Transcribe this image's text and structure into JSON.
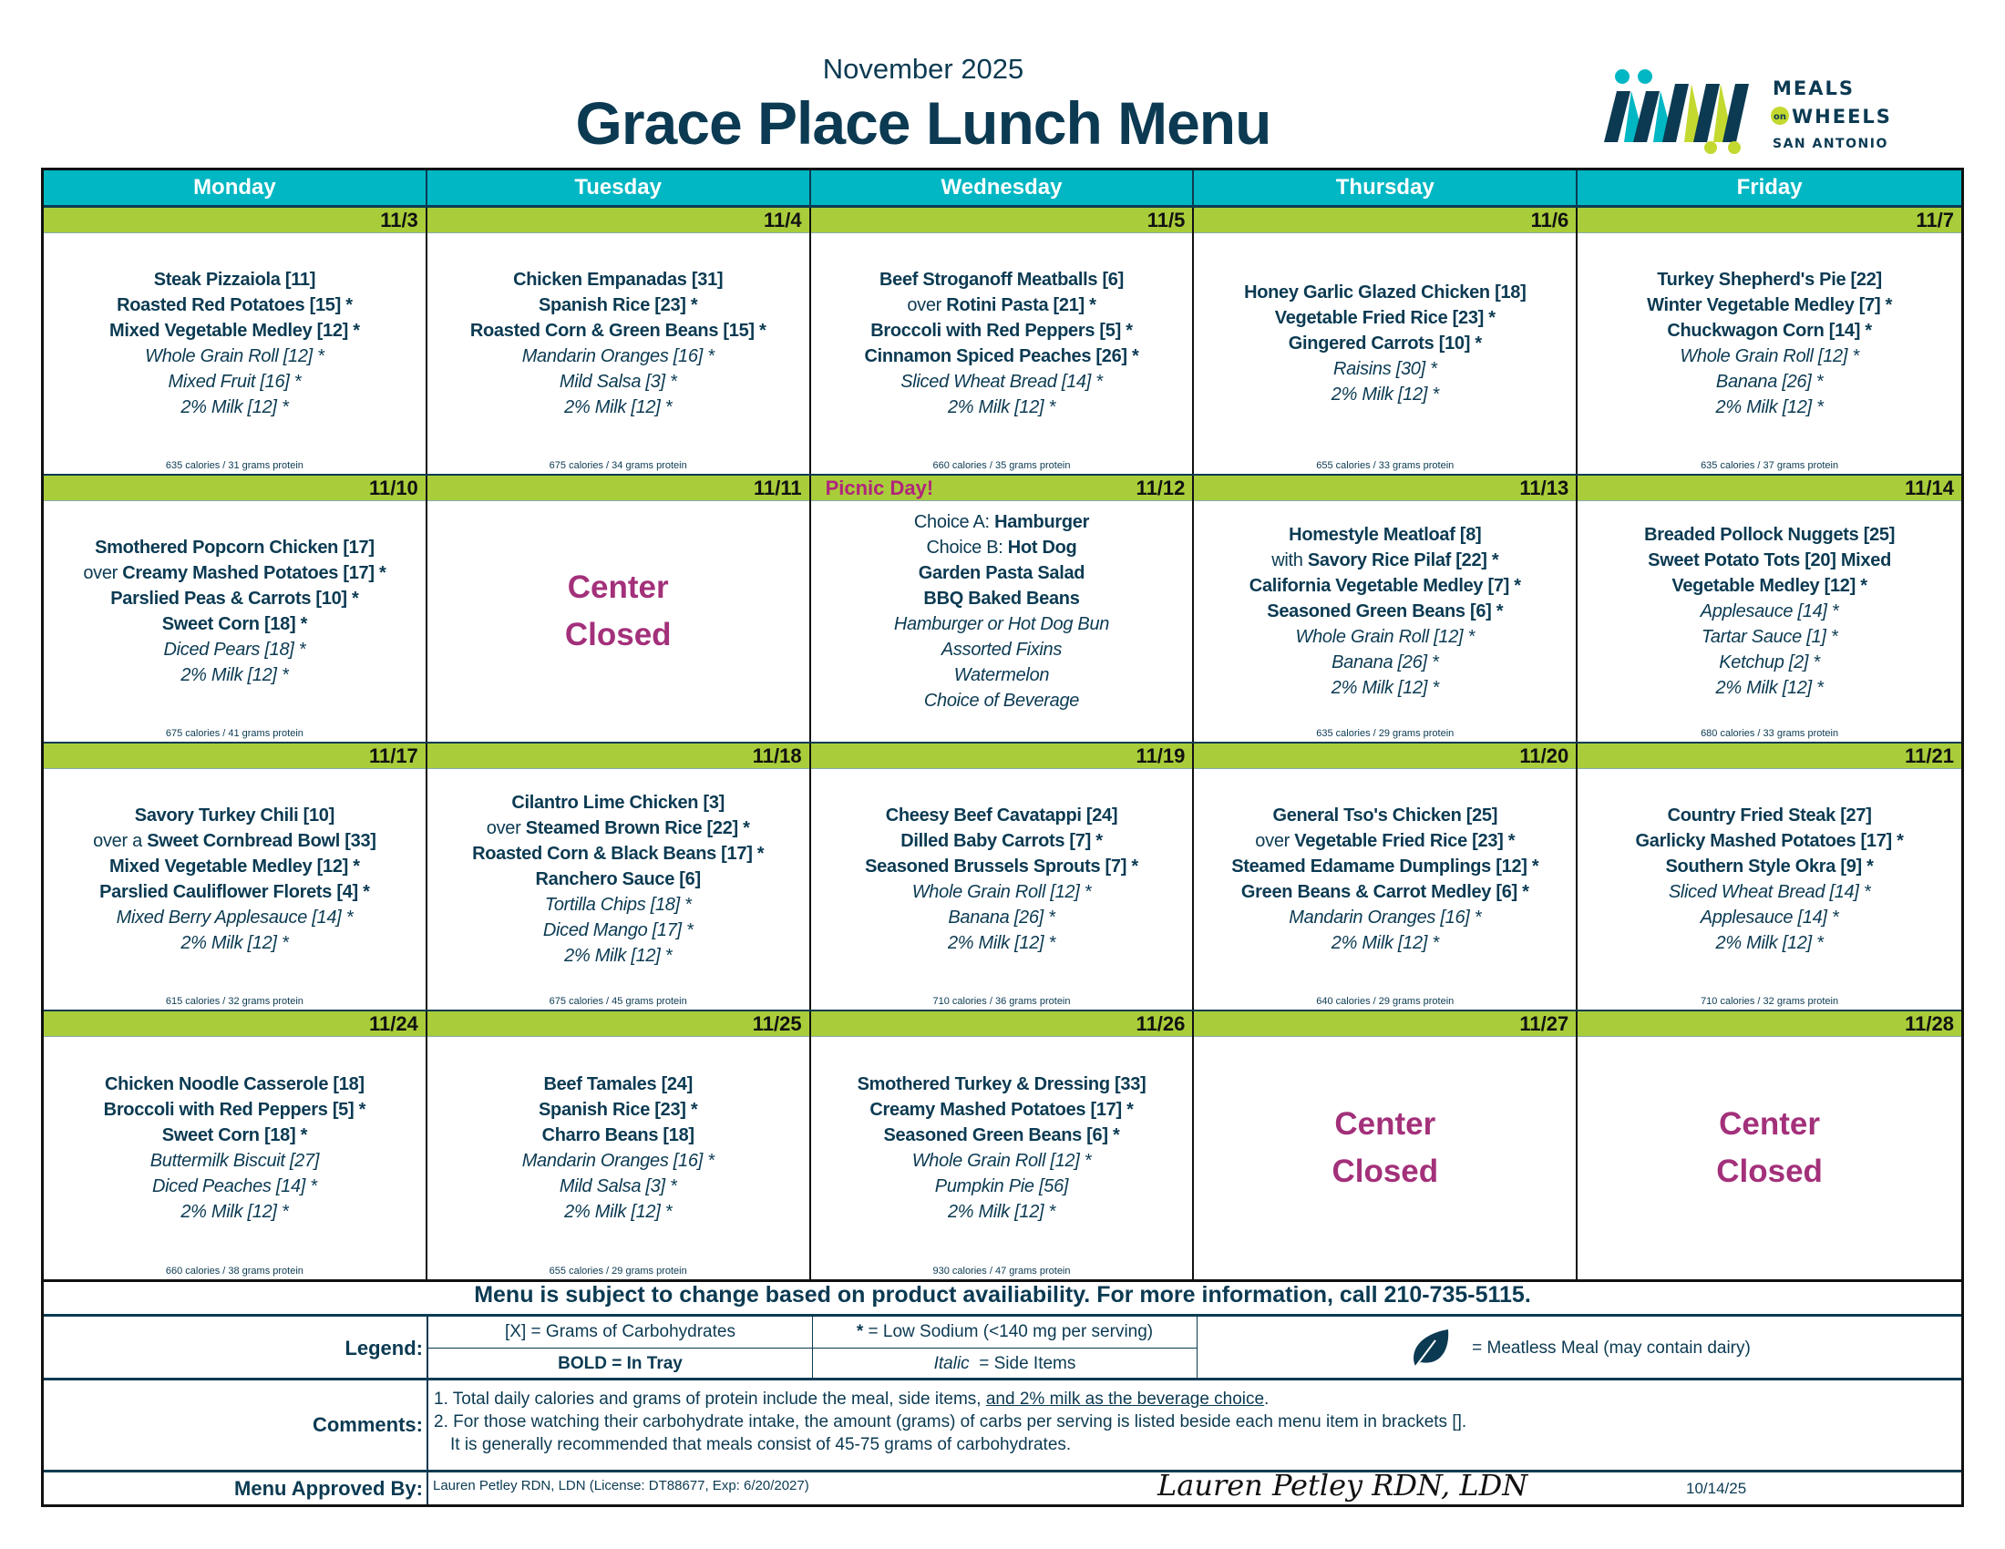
{
  "header": {
    "month": "November 2025",
    "title": "Grace Place Lunch Menu"
  },
  "logo": {
    "line1": "MEALS",
    "on": "on",
    "line2": "WHEELS",
    "line3": "SAN ANTONIO",
    "colors": {
      "navy": "#0b3a52",
      "teal": "#00b7c3",
      "lime": "#c4d930"
    }
  },
  "colors": {
    "header": "#00b7c3",
    "date_band": "#a9cd3a",
    "closed": "#a3307a",
    "text": "#0b3a52"
  },
  "days": [
    "Monday",
    "Tuesday",
    "Wednesday",
    "Thursday",
    "Friday"
  ],
  "weeks": [
    {
      "days": [
        {
          "date": "11/3",
          "items": [
            {
              "t": "Steak Pizzaiola [11]",
              "s": "b"
            },
            {
              "t": "Roasted Red Potatoes [15] *",
              "s": "b"
            },
            {
              "t": "Mixed Vegetable Medley [12] *",
              "s": "b"
            },
            {
              "t": "Whole Grain Roll [12] *",
              "s": "i"
            },
            {
              "t": "Mixed Fruit [16] *",
              "s": "i"
            },
            {
              "t": "2% Milk [12] *",
              "s": "i"
            }
          ],
          "calories": "635 calories / 31 grams protein"
        },
        {
          "date": "11/4",
          "items": [
            {
              "t": "Chicken Empanadas [31]",
              "s": "b"
            },
            {
              "t": "Spanish Rice [23] *",
              "s": "b"
            },
            {
              "t": "Roasted Corn & Green Beans [15] *",
              "s": "b"
            },
            {
              "t": "Mandarin Oranges [16] *",
              "s": "i"
            },
            {
              "t": "Mild Salsa [3] *",
              "s": "i"
            },
            {
              "t": "2% Milk [12] *",
              "s": "i"
            }
          ],
          "calories": "675 calories / 34 grams protein"
        },
        {
          "date": "11/5",
          "items": [
            {
              "t": "Beef Stroganoff Meatballs [6]",
              "s": "b"
            },
            {
              "p": "over ",
              "t": "Rotini Pasta [21] *",
              "s": "b"
            },
            {
              "t": "Broccoli with Red Peppers [5] *",
              "s": "b"
            },
            {
              "t": "Cinnamon Spiced Peaches [26] *",
              "s": "b"
            },
            {
              "t": "Sliced Wheat Bread [14] *",
              "s": "i"
            },
            {
              "t": "2% Milk [12] *",
              "s": "i"
            }
          ],
          "calories": "660 calories / 35 grams protein"
        },
        {
          "date": "11/6",
          "items": [
            {
              "t": "Honey Garlic Glazed Chicken [18]",
              "s": "b"
            },
            {
              "t": "Vegetable Fried Rice [23] *",
              "s": "b"
            },
            {
              "t": "Gingered Carrots [10] *",
              "s": "b"
            },
            {
              "t": "Raisins [30] *",
              "s": "i"
            },
            {
              "t": "2% Milk [12] *",
              "s": "i"
            }
          ],
          "calories": "655 calories / 33 grams protein"
        },
        {
          "date": "11/7",
          "items": [
            {
              "t": "Turkey Shepherd's Pie [22]",
              "s": "b"
            },
            {
              "t": "Winter Vegetable Medley [7] *",
              "s": "b"
            },
            {
              "t": "Chuckwagon Corn [14] *",
              "s": "b"
            },
            {
              "t": "Whole Grain Roll [12] *",
              "s": "i"
            },
            {
              "t": "Banana [26] *",
              "s": "i"
            },
            {
              "t": "2% Milk [12] *",
              "s": "i"
            }
          ],
          "calories": "635 calories / 37 grams protein"
        }
      ]
    },
    {
      "days": [
        {
          "date": "11/10",
          "items": [
            {
              "t": "Smothered Popcorn Chicken [17]",
              "s": "b"
            },
            {
              "p": "over ",
              "t": "Creamy Mashed Potatoes [17] *",
              "s": "b"
            },
            {
              "t": "Parslied Peas & Carrots [10] *",
              "s": "b"
            },
            {
              "t": "Sweet Corn [18] *",
              "s": "b"
            },
            {
              "t": "Diced Pears [18] *",
              "s": "i"
            },
            {
              "t": "2% Milk [12] *",
              "s": "i"
            }
          ],
          "calories": "675 calories / 41 grams protein"
        },
        {
          "date": "11/11",
          "closed": [
            "Center",
            "Closed"
          ]
        },
        {
          "date": "11/12",
          "note": "Picnic Day!",
          "items": [
            {
              "p": "Choice A: ",
              "t": "Hamburger",
              "s": "b"
            },
            {
              "p": "Choice B: ",
              "t": "Hot Dog",
              "s": "b"
            },
            {
              "t": "Garden Pasta Salad",
              "s": "b"
            },
            {
              "t": "BBQ Baked Beans",
              "s": "b"
            },
            {
              "t": "Hamburger or Hot Dog Bun",
              "s": "i"
            },
            {
              "t": "Assorted Fixins",
              "s": "i"
            },
            {
              "t": "Watermelon",
              "s": "i"
            },
            {
              "t": "Choice of Beverage",
              "s": "i"
            }
          ]
        },
        {
          "date": "11/13",
          "items": [
            {
              "t": "Homestyle Meatloaf [8]",
              "s": "b"
            },
            {
              "p": "with ",
              "t": "Savory Rice Pilaf [22] *",
              "s": "b"
            },
            {
              "t": "California Vegetable Medley [7] *",
              "s": "b"
            },
            {
              "t": "Seasoned Green Beans [6] *",
              "s": "b"
            },
            {
              "t": "Whole Grain Roll [12] *",
              "s": "i"
            },
            {
              "t": "Banana [26] *",
              "s": "i"
            },
            {
              "t": "2% Milk [12] *",
              "s": "i"
            }
          ],
          "calories": "635 calories / 29 grams protein"
        },
        {
          "date": "11/14",
          "items": [
            {
              "t": "Breaded Pollock Nuggets [25]",
              "s": "b"
            },
            {
              "t": "Sweet Potato Tots [20] Mixed",
              "s": "b"
            },
            {
              "t": "Vegetable Medley [12] *",
              "s": "b"
            },
            {
              "t": "Applesauce [14] *",
              "s": "i"
            },
            {
              "t": "Tartar Sauce [1] *",
              "s": "i"
            },
            {
              "t": "Ketchup [2] *",
              "s": "i"
            },
            {
              "t": "2% Milk [12] *",
              "s": "i"
            }
          ],
          "calories": "680 calories / 33 grams protein"
        }
      ]
    },
    {
      "days": [
        {
          "date": "11/17",
          "items": [
            {
              "t": "Savory Turkey Chili [10]",
              "s": "b"
            },
            {
              "p": "over a ",
              "t": "Sweet Cornbread Bowl [33]",
              "s": "b"
            },
            {
              "t": "Mixed Vegetable Medley [12] *",
              "s": "b"
            },
            {
              "t": "Parslied Cauliflower Florets [4] *",
              "s": "b"
            },
            {
              "t": "Mixed Berry Applesauce [14] *",
              "s": "i"
            },
            {
              "t": "2% Milk [12] *",
              "s": "i"
            }
          ],
          "calories": "615 calories / 32 grams protein"
        },
        {
          "date": "11/18",
          "items": [
            {
              "t": "Cilantro Lime Chicken [3]",
              "s": "b"
            },
            {
              "p": "over ",
              "t": "Steamed Brown Rice [22] *",
              "s": "b"
            },
            {
              "t": "Roasted Corn & Black Beans [17] *",
              "s": "b"
            },
            {
              "t": "Ranchero Sauce [6]",
              "s": "b"
            },
            {
              "t": "Tortilla Chips [18] *",
              "s": "i"
            },
            {
              "t": "Diced Mango [17] *",
              "s": "i"
            },
            {
              "t": "2% Milk [12] *",
              "s": "i"
            }
          ],
          "calories": "675 calories / 45 grams protein"
        },
        {
          "date": "11/19",
          "items": [
            {
              "t": "Cheesy Beef Cavatappi [24]",
              "s": "b"
            },
            {
              "t": "Dilled Baby Carrots [7] *",
              "s": "b"
            },
            {
              "t": "Seasoned Brussels Sprouts [7] *",
              "s": "b"
            },
            {
              "t": "Whole Grain Roll [12] *",
              "s": "i"
            },
            {
              "t": "Banana [26] *",
              "s": "i"
            },
            {
              "t": "2% Milk [12] *",
              "s": "i"
            }
          ],
          "calories": "710 calories / 36 grams protein"
        },
        {
          "date": "11/20",
          "items": [
            {
              "t": "General Tso's Chicken [25]",
              "s": "b"
            },
            {
              "p": "over ",
              "t": "Vegetable Fried Rice [23] *",
              "s": "b"
            },
            {
              "t": "Steamed Edamame Dumplings [12] *",
              "s": "b"
            },
            {
              "t": "Green Beans & Carrot Medley [6] *",
              "s": "b"
            },
            {
              "t": "Mandarin Oranges [16] *",
              "s": "i"
            },
            {
              "t": "2% Milk [12] *",
              "s": "i"
            }
          ],
          "calories": "640 calories / 29 grams protein"
        },
        {
          "date": "11/21",
          "items": [
            {
              "t": "Country Fried Steak [27]",
              "s": "b"
            },
            {
              "t": "Garlicky Mashed Potatoes [17] *",
              "s": "b"
            },
            {
              "t": "Southern Style Okra [9] *",
              "s": "b"
            },
            {
              "t": "Sliced Wheat Bread [14] *",
              "s": "i"
            },
            {
              "t": "Applesauce [14] *",
              "s": "i"
            },
            {
              "t": "2% Milk [12] *",
              "s": "i"
            }
          ],
          "calories": "710 calories / 32 grams protein"
        }
      ]
    },
    {
      "days": [
        {
          "date": "11/24",
          "items": [
            {
              "t": "Chicken Noodle Casserole [18]",
              "s": "b"
            },
            {
              "t": "Broccoli with Red Peppers [5] *",
              "s": "b"
            },
            {
              "t": "Sweet Corn [18] *",
              "s": "b"
            },
            {
              "t": "Buttermilk Biscuit [27]",
              "s": "i"
            },
            {
              "t": "Diced Peaches [14] *",
              "s": "i"
            },
            {
              "t": "2% Milk [12] *",
              "s": "i"
            }
          ],
          "calories": "660 calories / 38 grams protein"
        },
        {
          "date": "11/25",
          "items": [
            {
              "t": "Beef Tamales [24]",
              "s": "b"
            },
            {
              "t": "Spanish Rice [23] *",
              "s": "b"
            },
            {
              "t": "Charro Beans [18]",
              "s": "b"
            },
            {
              "t": "Mandarin Oranges [16] *",
              "s": "i"
            },
            {
              "t": "Mild Salsa [3] *",
              "s": "i"
            },
            {
              "t": "2% Milk [12] *",
              "s": "i"
            }
          ],
          "calories": "655 calories / 29 grams protein"
        },
        {
          "date": "11/26",
          "items": [
            {
              "t": "Smothered Turkey & Dressing [33]",
              "s": "b"
            },
            {
              "t": "Creamy Mashed Potatoes [17] *",
              "s": "b"
            },
            {
              "t": "Seasoned Green Beans [6] *",
              "s": "b"
            },
            {
              "t": "Whole Grain Roll [12] *",
              "s": "i"
            },
            {
              "t": "Pumpkin Pie [56]",
              "s": "i"
            },
            {
              "t": "2% Milk [12] *",
              "s": "i"
            }
          ],
          "calories": "930 calories / 47 grams protein"
        },
        {
          "date": "11/27",
          "closed": [
            "Center",
            "Closed"
          ]
        },
        {
          "date": "11/28",
          "closed": [
            "Center",
            "Closed"
          ]
        }
      ]
    }
  ],
  "footer": {
    "notice": "Menu is subject to change based on product availiability. For more information, call 210-735-5115.",
    "legend_label": "Legend:",
    "legend": {
      "carbs": "[X] = Grams of Carbohydrates",
      "sodium_mark": "*",
      "sodium": " = Low Sodium (<140 mg per serving)",
      "bold_mark": "BOLD = In Tray",
      "italic_mark": "Italic",
      "italic": "  = Side Items",
      "leaf_icon": "leaf-icon",
      "meatless": "= Meatless Meal (may contain dairy)"
    },
    "comments_label": "Comments:",
    "comments": {
      "c1": "1. Total daily calories and grams of protein include the meal, side items, ",
      "c1_underlined": "and 2% milk as the beverage choice",
      "c1_end": ".",
      "c2": "2. For those watching their carbohydrate intake, the amount (grams) of carbs per serving is listed beside each menu item in brackets [].",
      "c3": "It is generally recommended that meals consist of 45-75 grams of carbohydrates."
    },
    "approved_label": "Menu Approved By:",
    "approved_by": "Lauren Petley RDN, LDN (License: DT88677, Exp: 6/20/2027)",
    "signature": "Lauren Petley RDN, LDN",
    "signature_date": "10/14/25"
  }
}
